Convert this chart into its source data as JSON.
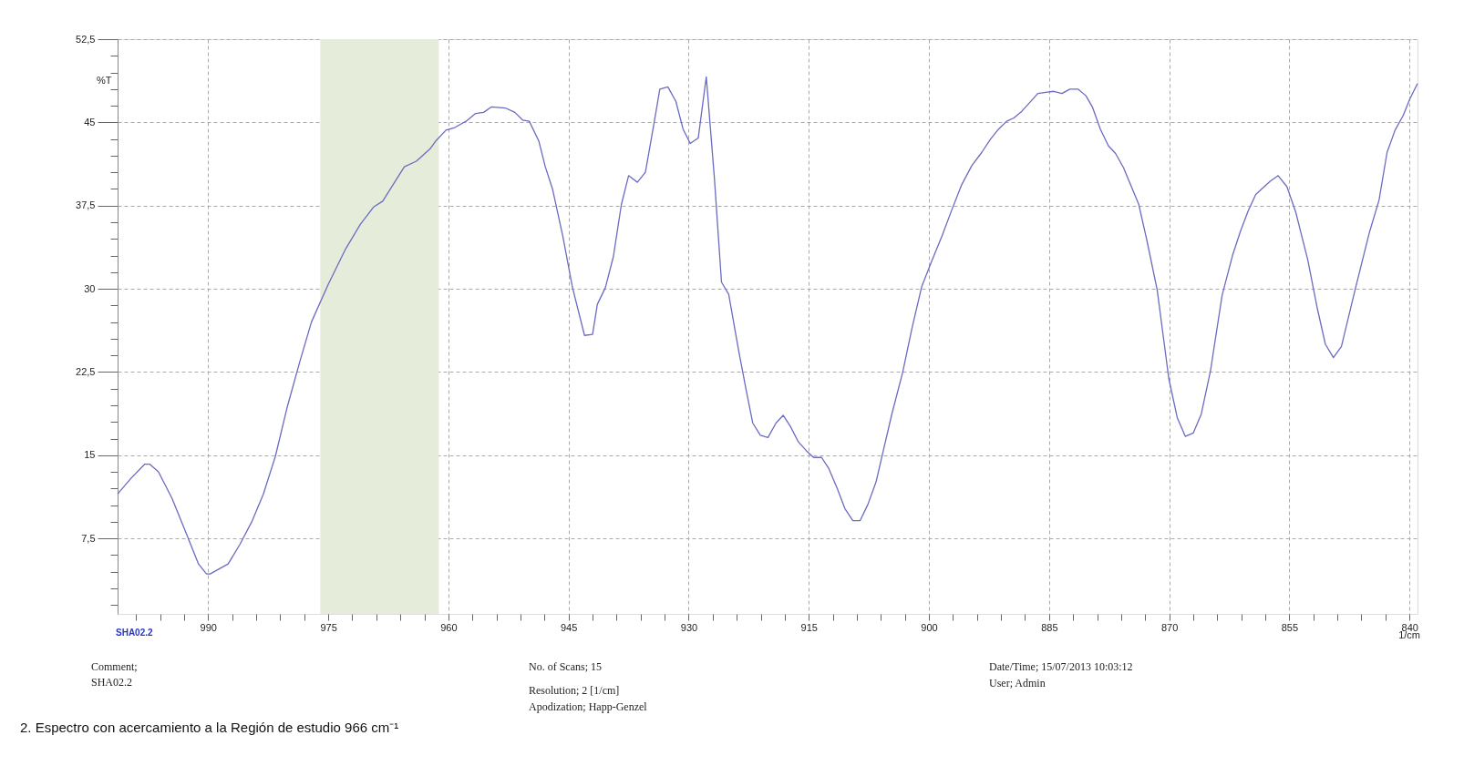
{
  "chart_data": {
    "type": "line",
    "ylabel": "%T",
    "xlabel": "1/cm",
    "annotations": [
      "SHA02.2",
      "Comment;",
      "SHA02.2",
      "No. of Scans; 15",
      "Resolution; 2 [1/cm]",
      "Apodization; Happ-Genzel",
      "Date/Time; 15/07/2013 10:03:12",
      "User; Admin",
      "2.  Espectro con acercamiento a la Región de estudio 966 cm⁻¹"
    ],
    "xlim": [
      1001.3,
      839.0
    ],
    "ylim": [
      0.7,
      52.5
    ],
    "xticks": [
      990,
      975,
      960,
      945,
      930,
      915,
      900,
      885,
      870,
      855,
      840,
      {
        "value": 999,
        "label": null
      },
      {
        "value": 996,
        "label": null
      },
      {
        "value": 993,
        "label": null
      },
      {
        "value": 987,
        "label": null
      },
      {
        "value": 984,
        "label": null
      },
      {
        "value": 981,
        "label": null
      },
      {
        "value": 978,
        "label": null
      },
      {
        "value": 972,
        "label": null
      },
      {
        "value": 969,
        "label": null
      },
      {
        "value": 966,
        "label": null
      },
      {
        "value": 963,
        "label": null
      },
      {
        "value": 957,
        "label": null
      },
      {
        "value": 954,
        "label": null
      },
      {
        "value": 951,
        "label": null
      },
      {
        "value": 948,
        "label": null
      },
      {
        "value": 942,
        "label": null
      },
      {
        "value": 939,
        "label": null
      },
      {
        "value": 936,
        "label": null
      },
      {
        "value": 933,
        "label": null
      },
      {
        "value": 927,
        "label": null
      },
      {
        "value": 924,
        "label": null
      },
      {
        "value": 921,
        "label": null
      },
      {
        "value": 918,
        "label": null
      },
      {
        "value": 912,
        "label": null
      },
      {
        "value": 909,
        "label": null
      },
      {
        "value": 906,
        "label": null
      },
      {
        "value": 903,
        "label": null
      },
      {
        "value": 897,
        "label": null
      },
      {
        "value": 894,
        "label": null
      },
      {
        "value": 891,
        "label": null
      },
      {
        "value": 888,
        "label": null
      },
      {
        "value": 882,
        "label": null
      },
      {
        "value": 879,
        "label": null
      },
      {
        "value": 876,
        "label": null
      },
      {
        "value": 873,
        "label": null
      },
      {
        "value": 867,
        "label": null
      },
      {
        "value": 864,
        "label": null
      },
      {
        "value": 861,
        "label": null
      },
      {
        "value": 858,
        "label": null
      },
      {
        "value": 852,
        "label": null
      },
      {
        "value": 849,
        "label": null
      },
      {
        "value": 846,
        "label": null
      },
      {
        "value": 843,
        "label": null
      }
    ],
    "yticks": [
      {
        "value": 7.5,
        "label": "7,5"
      },
      15,
      {
        "value": 22.5,
        "label": "22,5"
      },
      30,
      {
        "value": 37.5,
        "label": "37,5"
      },
      45,
      {
        "value": 52.5,
        "label": "52,5"
      },
      {
        "value": 1.5,
        "label": null
      },
      {
        "value": 3,
        "label": null
      },
      {
        "value": 4.5,
        "label": null
      },
      {
        "value": 6,
        "label": null
      },
      {
        "value": 9,
        "label": null
      },
      {
        "value": 10.5,
        "label": null
      },
      {
        "value": 12,
        "label": null
      },
      {
        "value": 13.5,
        "label": null
      },
      {
        "value": 16.5,
        "label": null
      },
      {
        "value": 18,
        "label": null
      },
      {
        "value": 19.5,
        "label": null
      },
      {
        "value": 21,
        "label": null
      },
      {
        "value": 24,
        "label": null
      },
      {
        "value": 25.5,
        "label": null
      },
      {
        "value": 27,
        "label": null
      },
      {
        "value": 28.5,
        "label": null
      },
      {
        "value": 31.5,
        "label": null
      },
      {
        "value": 33,
        "label": null
      },
      {
        "value": 34.5,
        "label": null
      },
      {
        "value": 36,
        "label": null
      },
      {
        "value": 39,
        "label": null
      },
      {
        "value": 40.5,
        "label": null
      },
      {
        "value": 42,
        "label": null
      },
      {
        "value": 43.5,
        "label": null
      },
      {
        "value": 46.5,
        "label": null
      },
      {
        "value": 48,
        "label": null
      },
      {
        "value": 49.5,
        "label": null
      },
      {
        "value": 51,
        "label": null
      }
    ],
    "grid": true,
    "line_style": "solid",
    "bands": [
      {
        "axis": "x",
        "from": 976.0,
        "to": 961.2,
        "color": "#e5edda"
      }
    ],
    "series": [
      {
        "color": "#6b6bc2",
        "x": [
          1001.3,
          999.65,
          997.9,
          997.3,
          996.2,
          994.5,
          992.7,
          991.2,
          990.2,
          989.75,
          987.5,
          986.0,
          984.55,
          983.1,
          981.6,
          980.1,
          978.6,
          977.1,
          975.0,
          972.9,
          971.0,
          969.3,
          968.2,
          965.5,
          964.0,
          962.3,
          961.6,
          960.3,
          959.3,
          957.8,
          956.6,
          955.6,
          954.6,
          952.9,
          951.7,
          950.7,
          949.9,
          948.7,
          947.9,
          947.0,
          945.7,
          944.5,
          943.0,
          942.0,
          941.4,
          940.4,
          939.4,
          938.4,
          937.5,
          936.4,
          935.4,
          934.45,
          933.6,
          932.6,
          931.6,
          930.7,
          929.8,
          928.8,
          927.8,
          926.8,
          925.9,
          925.0,
          923.75,
          922.8,
          922.0,
          921.05,
          920.1,
          919.1,
          918.2,
          917.3,
          916.3,
          915.3,
          914.4,
          913.4,
          912.5,
          911.45,
          910.5,
          909.5,
          908.6,
          907.6,
          906.6,
          905.8,
          904.6,
          903.3,
          902.1,
          900.9,
          899.6,
          898.4,
          897.1,
          895.9,
          894.65,
          893.4,
          892.3,
          891.3,
          890.3,
          889.4,
          888.4,
          886.4,
          885.4,
          884.4,
          883.4,
          882.4,
          881.4,
          880.4,
          879.6,
          878.6,
          877.6,
          876.7,
          875.7,
          874.6,
          873.8,
          872.8,
          871.5,
          870.05,
          869.0,
          868.0,
          867.0,
          866.0,
          864.85,
          863.4,
          862.1,
          861.1,
          860.15,
          859.2,
          857.4,
          856.4,
          855.3,
          854.2,
          852.7,
          851.5,
          850.5,
          849.5,
          848.5,
          846.8,
          845.0,
          843.8,
          842.8,
          841.8,
          840.8,
          839.9,
          839.0
        ],
        "values": [
          11.5,
          12.9,
          14.2,
          14.2,
          13.5,
          11.1,
          7.9,
          5.2,
          4.3,
          4.3,
          5.2,
          7.0,
          9.0,
          11.5,
          14.9,
          19.4,
          23.3,
          27.0,
          30.4,
          33.5,
          35.8,
          37.4,
          37.9,
          41.0,
          41.5,
          42.6,
          43.3,
          44.3,
          44.5,
          45.1,
          45.8,
          45.9,
          46.4,
          46.3,
          45.9,
          45.2,
          45.1,
          43.3,
          41.0,
          39.0,
          34.7,
          30.1,
          25.8,
          25.9,
          28.6,
          30.1,
          32.9,
          37.6,
          40.2,
          39.6,
          40.5,
          44.4,
          48.0,
          48.2,
          46.9,
          44.4,
          43.1,
          43.6,
          49.1,
          40.1,
          30.6,
          29.5,
          24.4,
          20.8,
          17.9,
          16.8,
          16.6,
          17.9,
          18.6,
          17.6,
          16.2,
          15.4,
          14.8,
          14.8,
          13.8,
          12.0,
          10.2,
          9.1,
          9.1,
          10.6,
          12.6,
          15.1,
          18.8,
          22.4,
          26.5,
          30.2,
          32.6,
          34.7,
          37.2,
          39.4,
          41.1,
          42.3,
          43.5,
          44.4,
          45.1,
          45.4,
          46.0,
          47.6,
          47.7,
          47.8,
          47.6,
          48.0,
          48.0,
          47.4,
          46.4,
          44.4,
          42.9,
          42.2,
          40.9,
          39.0,
          37.6,
          34.4,
          29.9,
          21.9,
          18.4,
          16.7,
          17.0,
          18.7,
          22.6,
          29.4,
          33.0,
          35.2,
          37.0,
          38.5,
          39.7,
          40.2,
          39.2,
          36.9,
          32.6,
          28.2,
          25.0,
          23.8,
          24.8,
          29.9,
          35.1,
          38.0,
          42.3,
          44.3,
          45.6,
          47.2,
          48.5
        ]
      }
    ]
  }
}
